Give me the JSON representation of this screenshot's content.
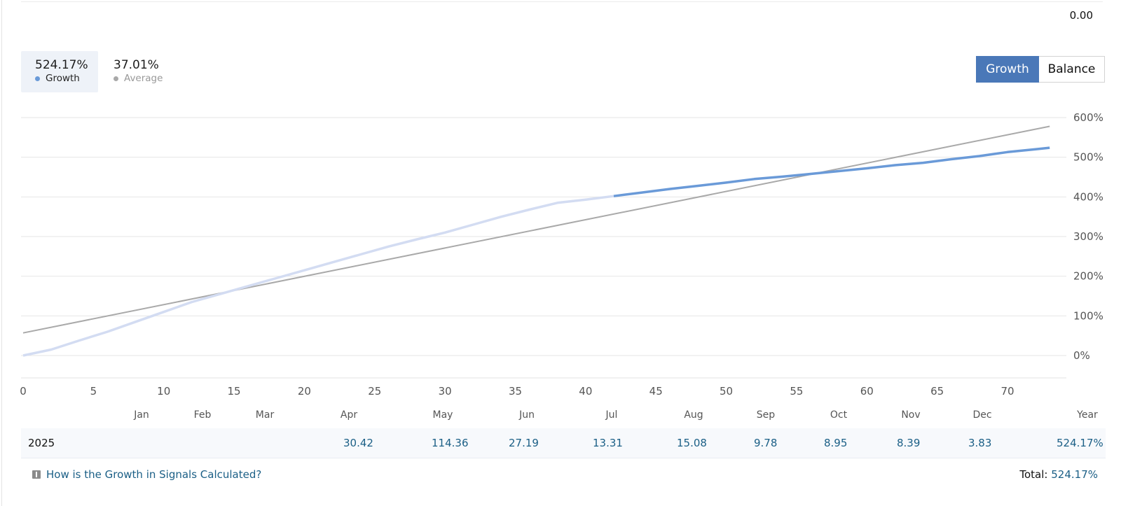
{
  "top_value": "0.00",
  "legend": {
    "growth": {
      "value": "524.17%",
      "label": "Growth",
      "color": "#6a9ad8"
    },
    "average": {
      "value": "37.01%",
      "label": "Average",
      "color": "#a9a9a9"
    }
  },
  "toggle": {
    "growth_label": "Growth",
    "balance_label": "Balance",
    "active": "Growth"
  },
  "chart_data": {
    "type": "line",
    "x_ticks": [
      0,
      5,
      10,
      15,
      20,
      25,
      30,
      35,
      40,
      45,
      50,
      55,
      60,
      65,
      70
    ],
    "y_ticks": [
      "600%",
      "500%",
      "400%",
      "300%",
      "200%",
      "100%",
      "0%"
    ],
    "xlim": [
      0,
      73
    ],
    "ylim": [
      -60,
      600
    ],
    "months": [
      "Jan",
      "Feb",
      "Mar",
      "Apr",
      "May",
      "Jun",
      "Jul",
      "Aug",
      "Sep",
      "Oct",
      "Nov",
      "Dec",
      "Year"
    ],
    "series": [
      {
        "name": "Growth",
        "color_old": "#d3dcf2",
        "color_new": "#6a9ad8",
        "highlight_from_x": 42,
        "points": [
          [
            0,
            0
          ],
          [
            2,
            15
          ],
          [
            4,
            38
          ],
          [
            6,
            60
          ],
          [
            8,
            85
          ],
          [
            10,
            110
          ],
          [
            12,
            135
          ],
          [
            14,
            155
          ],
          [
            16,
            175
          ],
          [
            18,
            195
          ],
          [
            20,
            215
          ],
          [
            22,
            235
          ],
          [
            24,
            255
          ],
          [
            26,
            275
          ],
          [
            28,
            293
          ],
          [
            30,
            310
          ],
          [
            32,
            330
          ],
          [
            34,
            350
          ],
          [
            36,
            368
          ],
          [
            38,
            385
          ],
          [
            40,
            393
          ],
          [
            42,
            402
          ],
          [
            44,
            411
          ],
          [
            46,
            420
          ],
          [
            48,
            428
          ],
          [
            50,
            436
          ],
          [
            52,
            445
          ],
          [
            54,
            451
          ],
          [
            56,
            458
          ],
          [
            58,
            465
          ],
          [
            60,
            472
          ],
          [
            62,
            480
          ],
          [
            64,
            486
          ],
          [
            66,
            495
          ],
          [
            68,
            503
          ],
          [
            69,
            508
          ],
          [
            70,
            513
          ],
          [
            72,
            520
          ],
          [
            73,
            524
          ]
        ]
      },
      {
        "name": "Average",
        "color": "#a9a9a9",
        "points": [
          [
            0,
            57
          ],
          [
            73,
            578
          ]
        ]
      }
    ]
  },
  "table": {
    "year": "2025",
    "cells": [
      {
        "month": "Apr",
        "value": "30.42"
      },
      {
        "month": "May",
        "value": "114.36"
      },
      {
        "month": "Jun",
        "value": "27.19"
      },
      {
        "month": "Jul",
        "value": "13.31"
      },
      {
        "month": "Aug",
        "value": "15.08"
      },
      {
        "month": "Sep",
        "value": "9.78"
      },
      {
        "month": "Oct",
        "value": "8.95"
      },
      {
        "month": "Nov",
        "value": "8.39"
      },
      {
        "month": "Dec",
        "value": "3.83"
      },
      {
        "month": "Year",
        "value": "524.17%"
      }
    ]
  },
  "help": {
    "link": "How is the Growth in Signals Calculated?"
  },
  "total": {
    "label": "Total:",
    "value": "524.17%"
  }
}
